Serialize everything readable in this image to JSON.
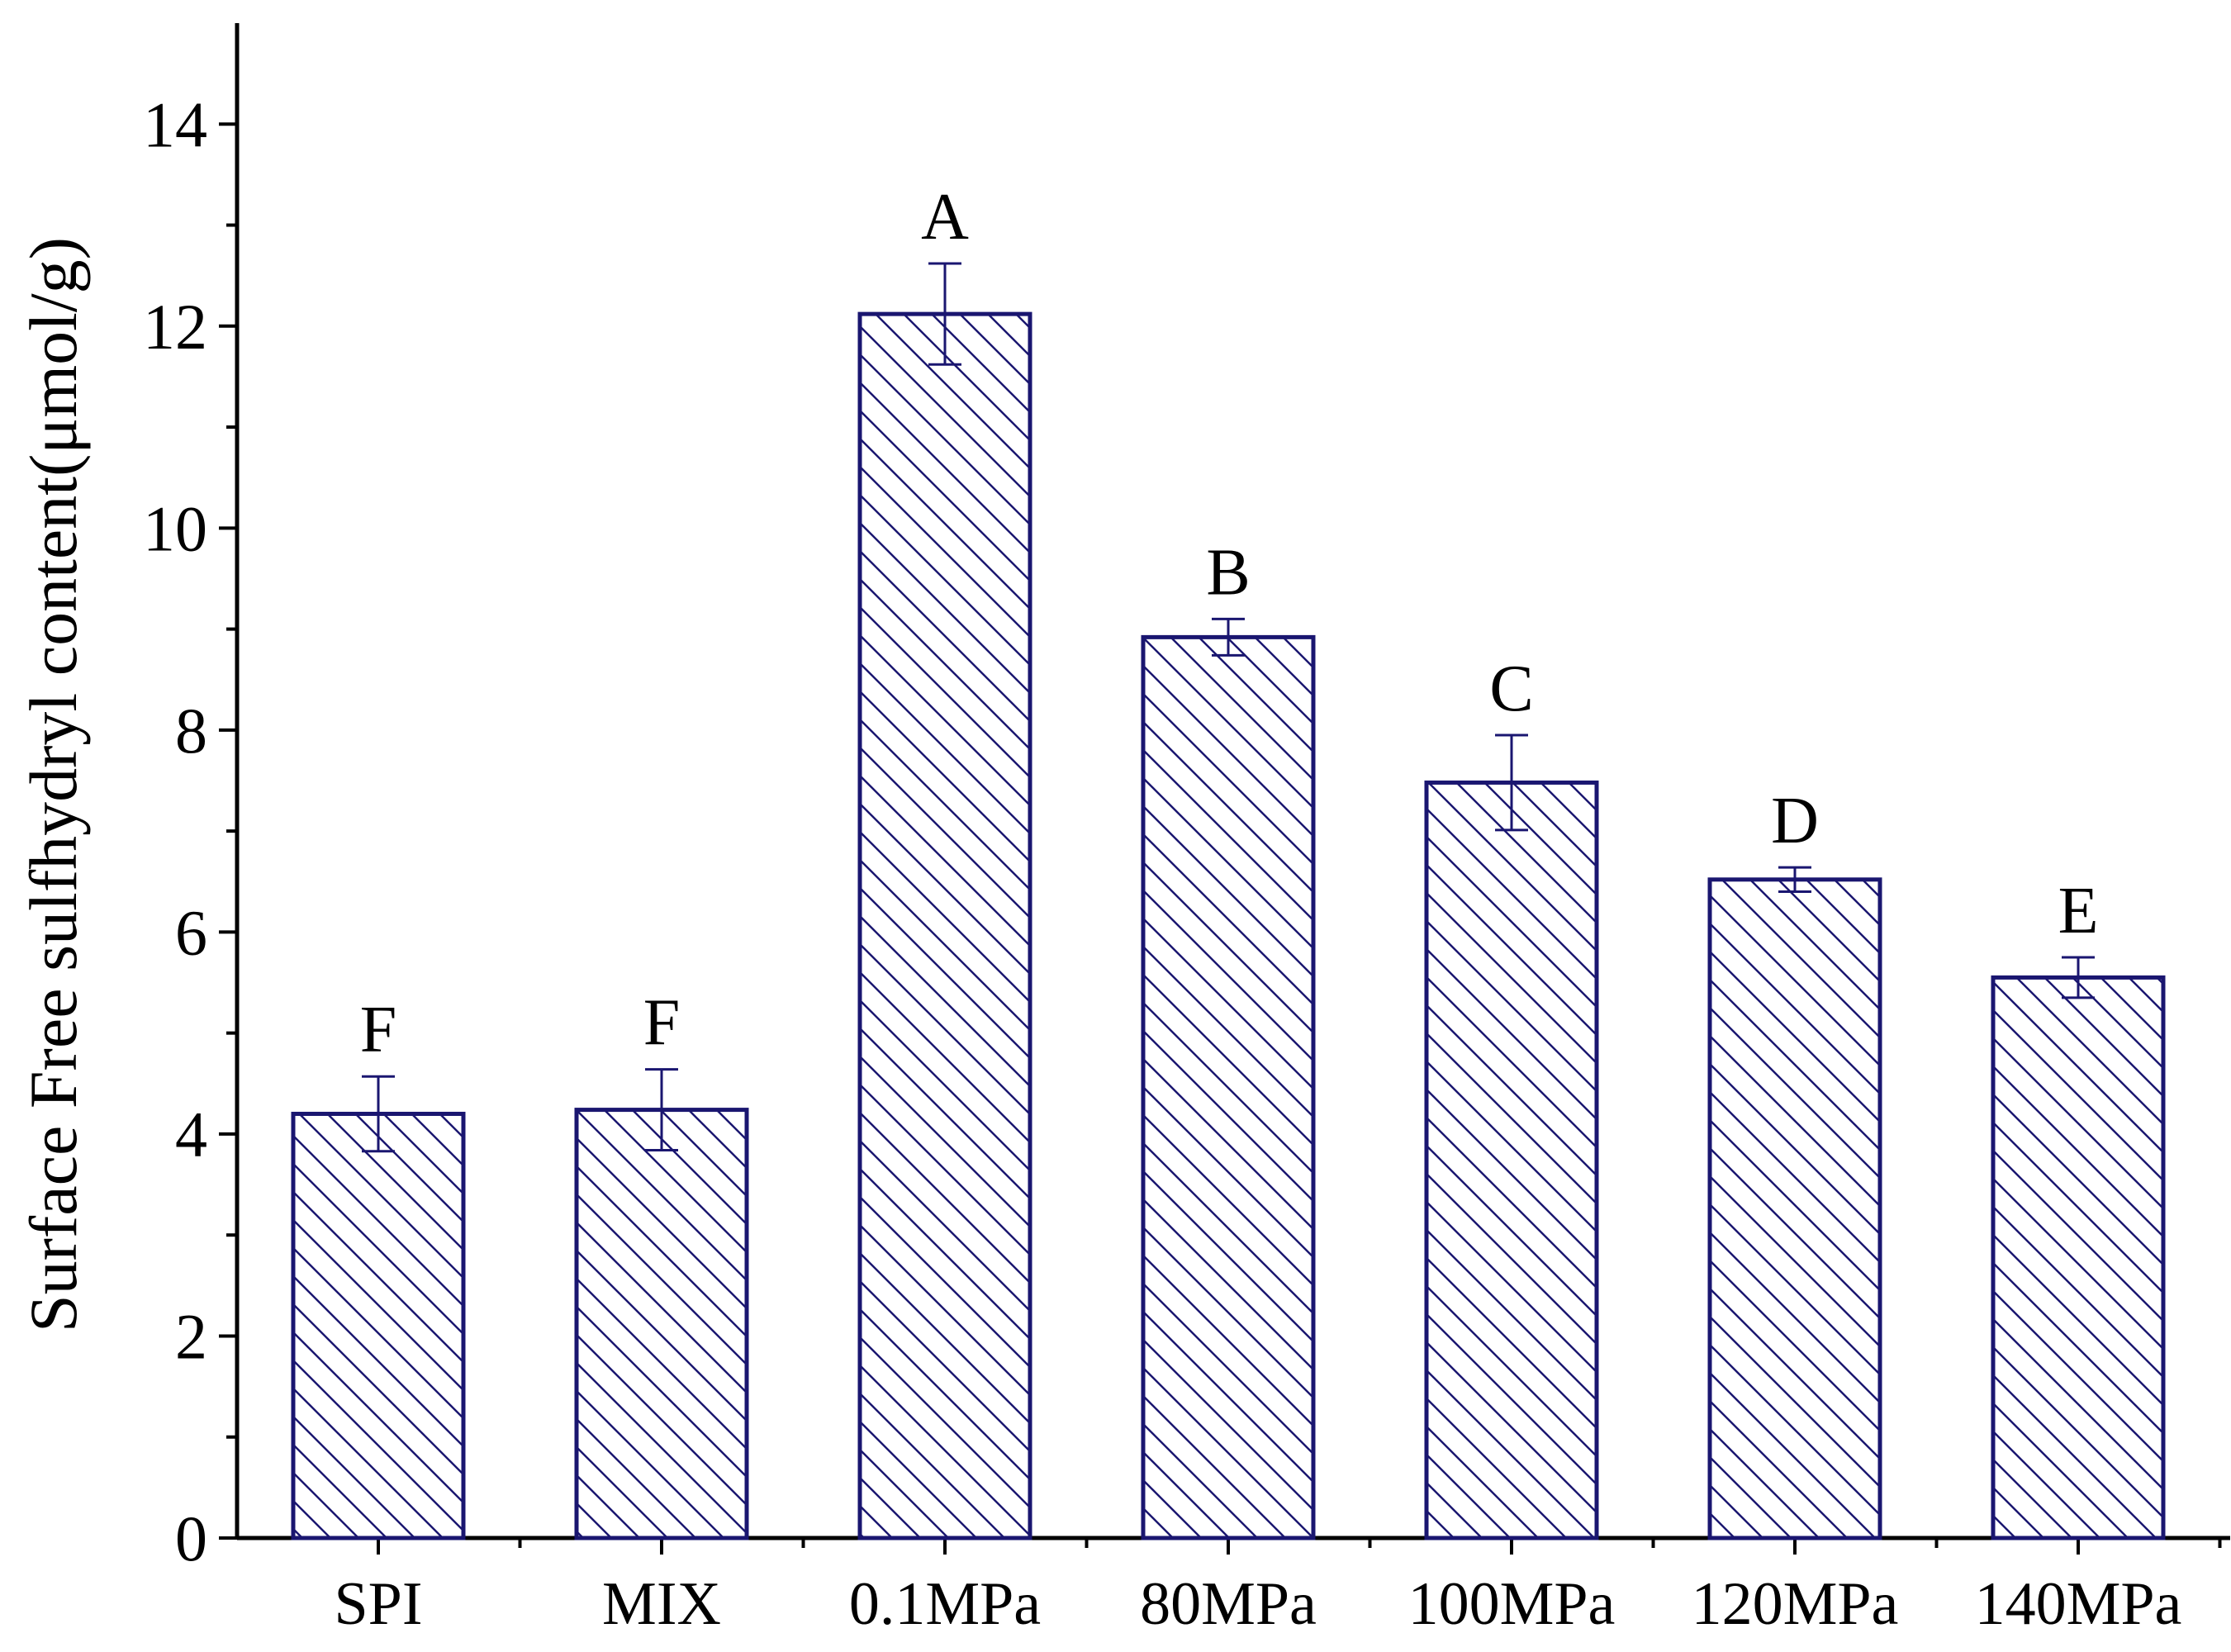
{
  "chart_data": {
    "type": "bar",
    "ylabel": "Surface Free sulfhydryl content(μmol/g)",
    "xlabel": "",
    "categories": [
      "SPI",
      "MIX",
      "0.1MPa",
      "80MPa",
      "100MPa",
      "120MPa",
      "140MPa"
    ],
    "values": [
      4.2,
      4.24,
      12.12,
      8.92,
      7.48,
      6.52,
      5.55
    ],
    "errors": [
      0.37,
      0.4,
      0.5,
      0.18,
      0.47,
      0.12,
      0.2
    ],
    "significance_labels": [
      "F",
      "F",
      "A",
      "B",
      "C",
      "D",
      "E"
    ],
    "ylim": [
      0,
      15
    ],
    "yticks": [
      0,
      2,
      4,
      6,
      8,
      10,
      12,
      14
    ],
    "ytick_labels": [
      "0",
      "2",
      "4",
      "6",
      "8",
      "10",
      "12",
      "14"
    ],
    "grid": false,
    "legend": "none",
    "bar_color": "#1a1670",
    "bar_fill": "#ffffff",
    "pattern": "diagonal-hatch"
  }
}
